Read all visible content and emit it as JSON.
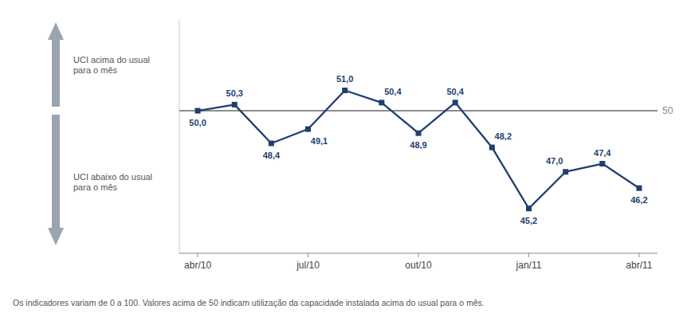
{
  "chart_data": {
    "type": "line",
    "categories": [
      "abr/10",
      null,
      null,
      "jul/10",
      null,
      null,
      "out/10",
      null,
      null,
      "jan/11",
      null,
      null,
      "abr/11"
    ],
    "values": [
      50.0,
      50.3,
      48.4,
      49.1,
      51.0,
      50.4,
      48.9,
      50.4,
      48.2,
      45.2,
      47.0,
      47.4,
      46.2
    ],
    "value_labels": [
      "50,0",
      "50,3",
      "48,4",
      "49,1",
      "51,0",
      "50,4",
      "48,9",
      "50,4",
      "48,2",
      "45,2",
      "47,0",
      "47,4",
      "46,2"
    ],
    "data_labels": true,
    "color": "#1f3f6e",
    "marker": "square",
    "ylim": [
      43.0,
      54.5
    ],
    "tick_labels": "x",
    "grid": false,
    "reference_line": {
      "value": 50,
      "label": "50",
      "color": "#8c8c8c"
    },
    "annotations": [
      "UCI acima do usual\npara o mês",
      "UCI abaixo do usual\npara o mês",
      "Os indicadores variam de 0 a 100. Valores acima de 50 indicam utilização da capacidade instalada acima do usual para o mês."
    ]
  }
}
